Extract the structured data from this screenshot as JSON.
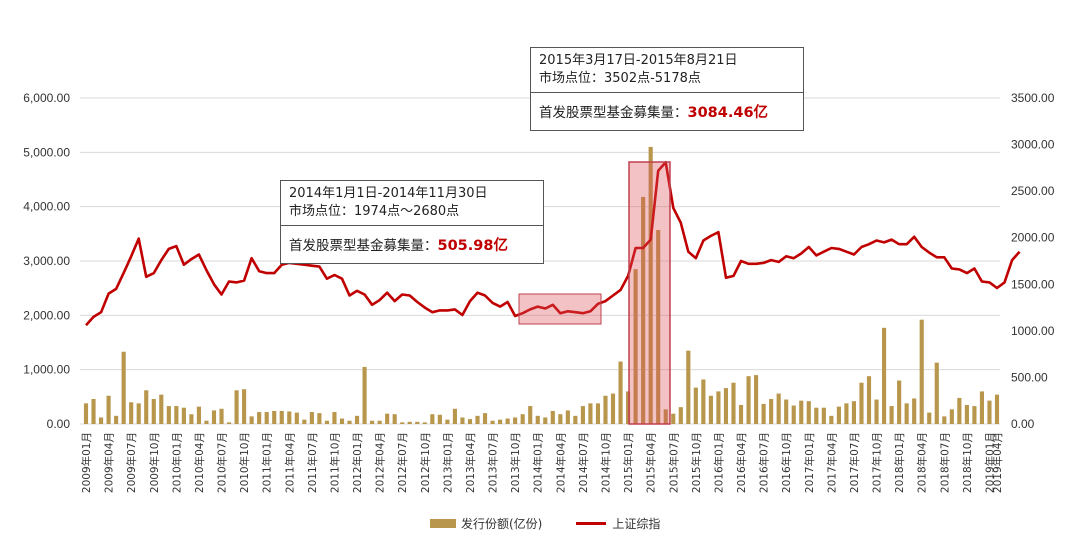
{
  "chart_data": {
    "type": "bar+line",
    "left_axis": {
      "ticks": [
        "6,000.00",
        "5,000.00",
        "4,000.00",
        "3,000.00",
        "2,000.00",
        "1,000.00",
        "0.00"
      ],
      "ylim": [
        0,
        6000
      ]
    },
    "right_axis": {
      "ticks": [
        "3500.00",
        "3000.00",
        "2500.00",
        "2000.00",
        "1500.00",
        "1000.00",
        "500.00",
        "0.00"
      ],
      "ylim": [
        0,
        3500
      ]
    },
    "x_labels": [
      "2009年01月",
      "2009年04月",
      "2009年07月",
      "2009年10月",
      "2010年01月",
      "2010年04月",
      "2010年07月",
      "2010年10月",
      "2011年01月",
      "2011年04月",
      "2011年07月",
      "2011年10月",
      "2012年01月",
      "2012年04月",
      "2012年07月",
      "2012年10月",
      "2013年01月",
      "2013年04月",
      "2013年07月",
      "2013年10月",
      "2014年01月",
      "2014年04月",
      "2014年07月",
      "2014年10月",
      "2015年01月",
      "2015年04月",
      "2015年07月",
      "2015年10月",
      "2016年01月",
      "2016年04月",
      "2016年07月",
      "2016年10月",
      "2017年01月",
      "2017年04月",
      "2017年07月",
      "2017年10月",
      "2018年01月",
      "2018年04月",
      "2018年07月",
      "2018年10月",
      "2019年01月",
      "2019年04月"
    ],
    "series": [
      {
        "name": "发行份额(亿份)",
        "type": "bar",
        "axis": "left",
        "color": "#b8964c",
        "values": [
          380,
          460,
          120,
          520,
          150,
          1330,
          400,
          380,
          620,
          460,
          540,
          330,
          330,
          300,
          180,
          320,
          60,
          250,
          280,
          30,
          620,
          640,
          140,
          220,
          220,
          240,
          240,
          230,
          210,
          80,
          220,
          200,
          60,
          220,
          100,
          60,
          150,
          1050,
          60,
          60,
          190,
          180,
          30,
          40,
          40,
          30,
          180,
          170,
          80,
          280,
          120,
          90,
          150,
          200,
          60,
          80,
          100,
          120,
          180,
          330,
          150,
          120,
          240,
          180,
          250,
          150,
          330,
          380,
          380,
          520,
          560,
          1150,
          600,
          2850,
          4180,
          5100,
          3570,
          270,
          190,
          310,
          1350,
          670,
          820,
          520,
          600,
          660,
          760,
          350,
          880,
          900,
          370,
          460,
          560,
          450,
          340,
          430,
          420,
          300,
          300,
          150,
          320,
          380,
          420,
          760,
          880,
          450,
          1770,
          330,
          800,
          380,
          470,
          1920,
          210,
          1130,
          140,
          270,
          480,
          350,
          330,
          600,
          430,
          540
        ]
      },
      {
        "name": "上证综指",
        "type": "line",
        "axis": "right",
        "color": "#c00000",
        "values": [
          1060,
          1150,
          1200,
          1400,
          1450,
          1620,
          1800,
          1990,
          1580,
          1620,
          1760,
          1880,
          1910,
          1710,
          1770,
          1820,
          1650,
          1500,
          1390,
          1530,
          1520,
          1540,
          1780,
          1640,
          1620,
          1620,
          1710,
          1730,
          1720,
          1710,
          1700,
          1690,
          1560,
          1600,
          1560,
          1380,
          1430,
          1390,
          1280,
          1330,
          1410,
          1320,
          1390,
          1380,
          1310,
          1250,
          1200,
          1220,
          1220,
          1230,
          1170,
          1320,
          1410,
          1380,
          1300,
          1260,
          1310,
          1160,
          1190,
          1230,
          1260,
          1240,
          1280,
          1190,
          1210,
          1200,
          1190,
          1210,
          1290,
          1320,
          1380,
          1440,
          1590,
          1890,
          1890,
          1980,
          2720,
          2810,
          2320,
          2160,
          1850,
          1780,
          1970,
          2020,
          2060,
          1570,
          1590,
          1750,
          1720,
          1720,
          1730,
          1760,
          1740,
          1800,
          1780,
          1830,
          1900,
          1810,
          1850,
          1890,
          1880,
          1850,
          1820,
          1900,
          1930,
          1970,
          1950,
          1980,
          1930,
          1930,
          2010,
          1900,
          1840,
          1790,
          1790,
          1670,
          1660,
          1620,
          1670,
          1530,
          1520,
          1460,
          1520,
          1760,
          1850
        ]
      }
    ],
    "annotations": [
      {
        "line1": "2014年1月1日-2014年11月30日",
        "line2": "市场点位：1974点～2680点",
        "label": "首发股票型基金募集量：",
        "value": "505.98亿"
      },
      {
        "line1": "2015年3月17日-2015年8月21日",
        "line2": "市场点位：3502点-5178点",
        "label": "首发股票型基金募集量：",
        "value": "3084.46亿"
      }
    ],
    "legend": {
      "position": "bottom"
    },
    "grid": true
  }
}
